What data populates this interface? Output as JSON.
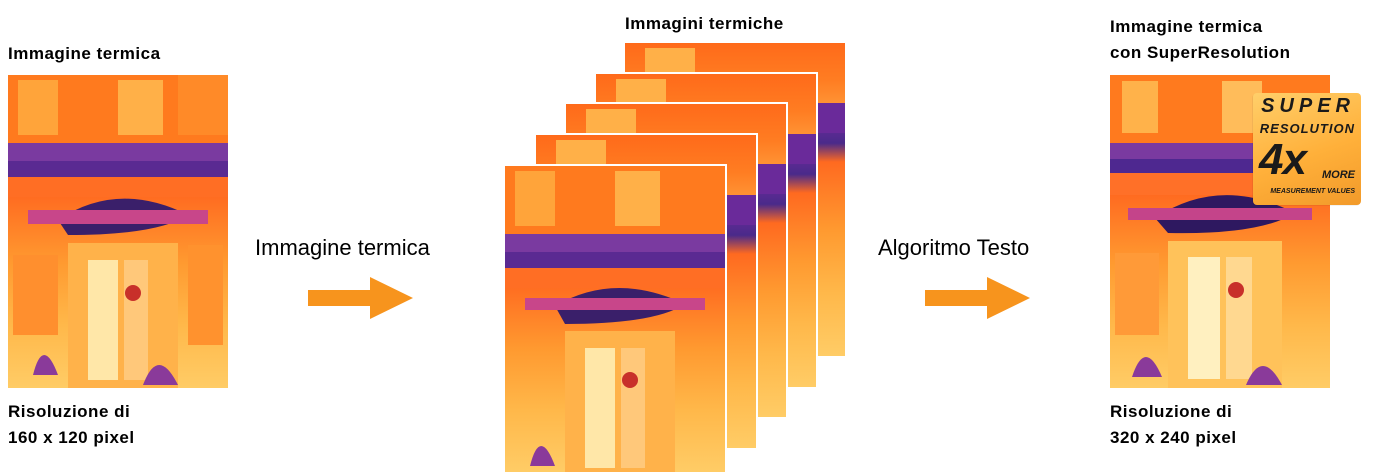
{
  "left": {
    "title": "Immagine termica",
    "caption_line1": "Risoluzione di",
    "caption_line2": "160 x 120 pixel"
  },
  "step1_label": "Immagine termica",
  "middle": {
    "title": "Immagini termiche"
  },
  "step2_label": "Algoritmo Testo",
  "right": {
    "title_line1": "Immagine termica",
    "title_line2": "con SuperResolution",
    "caption_line1": "Risoluzione di",
    "caption_line2": "320 x 240 pixel"
  },
  "badge": {
    "super": "SUPER",
    "resolution": "RESOLUTION",
    "four_x": "4x",
    "more": "MORE",
    "measurement": "MEASUREMENT VALUES"
  },
  "colors": {
    "arrow": "#f7941d",
    "badge": "#ffb03a"
  }
}
